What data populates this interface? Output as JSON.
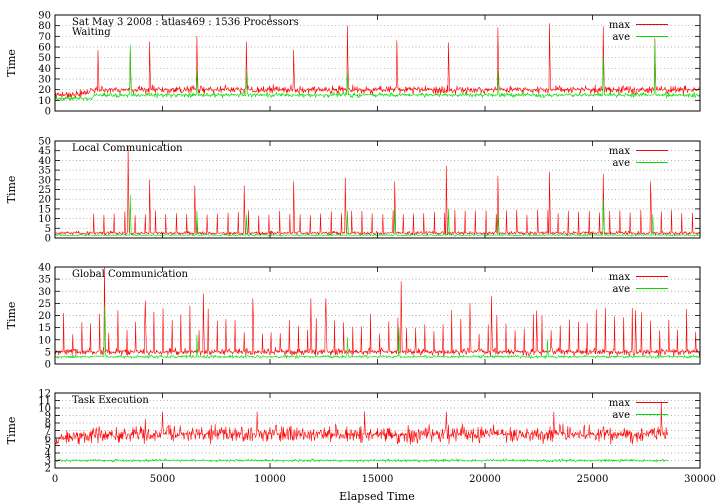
{
  "xlabel": "Elapsed Time",
  "colors": {
    "max": "#ff0000",
    "ave": "#00dd00",
    "frame": "#000000",
    "grid": "#999999"
  },
  "chart_data": [
    {
      "type": "line",
      "title": "Sat May 3 2008 : atlas469 : 1536 Processors",
      "subtitle": "Waiting",
      "ylabel": "Time",
      "xlim": [
        0,
        30000
      ],
      "ylim": [
        0,
        90
      ],
      "yticks": [
        0,
        10,
        20,
        30,
        40,
        50,
        60,
        70,
        80,
        90
      ],
      "xticks": [
        0,
        5000,
        10000,
        15000,
        20000,
        25000,
        30000
      ],
      "show_xtick_labels": false,
      "grid": true,
      "legend": "top-right",
      "sample": {
        "start": 0,
        "end": 30000,
        "step": 25
      },
      "series": [
        {
          "name": "max",
          "color": "#ff0000",
          "base_profile": [
            [
              0,
              15
            ],
            [
              1500,
              16
            ],
            [
              1700,
              20
            ],
            [
              30000,
              20
            ]
          ],
          "noise": 5,
          "noise_shape": 1.0,
          "clip": [
            10,
            90
          ],
          "spikes": [
            [
              2000,
              57
            ],
            [
              3500,
              58
            ],
            [
              4400,
              65
            ],
            [
              6600,
              70
            ],
            [
              8900,
              65
            ],
            [
              11100,
              57
            ],
            [
              13600,
              80
            ],
            [
              15900,
              66
            ],
            [
              18300,
              64
            ],
            [
              20600,
              78
            ],
            [
              23000,
              82
            ],
            [
              25500,
              79
            ],
            [
              27900,
              68
            ]
          ]
        },
        {
          "name": "ave",
          "color": "#00dd00",
          "base_profile": [
            [
              0,
              12
            ],
            [
              1700,
              12
            ],
            [
              1900,
              15
            ],
            [
              30000,
              15
            ]
          ],
          "noise": 3,
          "noise_shape": 1.0,
          "clip": [
            9,
            90
          ],
          "spikes": [
            [
              3500,
              62
            ],
            [
              6600,
              39
            ],
            [
              8900,
              37
            ],
            [
              13600,
              37
            ],
            [
              20600,
              37
            ],
            [
              25500,
              52
            ],
            [
              27900,
              65
            ]
          ]
        }
      ]
    },
    {
      "type": "line",
      "title": "Local Communication",
      "ylabel": "Time",
      "xlim": [
        0,
        30000
      ],
      "ylim": [
        0,
        50
      ],
      "yticks": [
        0,
        5,
        10,
        15,
        20,
        25,
        30,
        35,
        40,
        45,
        50
      ],
      "xticks": [
        0,
        5000,
        10000,
        15000,
        20000,
        25000,
        30000
      ],
      "show_xtick_labels": false,
      "grid": true,
      "legend": "top-right",
      "sample": {
        "start": 0,
        "end": 30000,
        "step": 25
      },
      "series": [
        {
          "name": "max",
          "color": "#ff0000",
          "base_profile": [
            [
              0,
              2.5
            ],
            [
              30000,
              2.5
            ]
          ],
          "noise": 1.2,
          "noise_shape": 1.0,
          "clip": [
            1,
            50
          ],
          "regular_spikes": {
            "start": 1800,
            "end": 29900,
            "period": 480,
            "height": 13,
            "jitter": 1.5
          },
          "spikes": [
            [
              3400,
              47
            ],
            [
              4400,
              30
            ],
            [
              6500,
              27
            ],
            [
              8800,
              27
            ],
            [
              11100,
              29
            ],
            [
              13500,
              31
            ],
            [
              15800,
              29
            ],
            [
              18200,
              37
            ],
            [
              20600,
              32
            ],
            [
              23000,
              34
            ],
            [
              25500,
              33
            ],
            [
              27700,
              29
            ]
          ]
        },
        {
          "name": "ave",
          "color": "#00dd00",
          "base_profile": [
            [
              0,
              1.5
            ],
            [
              30000,
              1.5
            ]
          ],
          "noise": 0.6,
          "noise_shape": 1.0,
          "clip": [
            0.5,
            50
          ],
          "spikes": [
            [
              3500,
              22
            ],
            [
              6600,
              14
            ],
            [
              8900,
              12
            ],
            [
              13600,
              14
            ],
            [
              15800,
              15
            ],
            [
              18300,
              15
            ],
            [
              20600,
              12
            ],
            [
              25500,
              20
            ],
            [
              27800,
              12
            ]
          ]
        }
      ]
    },
    {
      "type": "line",
      "title": "Global Communication",
      "ylabel": "Time",
      "xlim": [
        0,
        30000
      ],
      "ylim": [
        0,
        40
      ],
      "yticks": [
        0,
        5,
        10,
        15,
        20,
        25,
        30,
        35,
        40
      ],
      "xticks": [
        0,
        5000,
        10000,
        15000,
        20000,
        25000,
        30000
      ],
      "show_xtick_labels": false,
      "grid": true,
      "legend": "top-right",
      "sample": {
        "start": 0,
        "end": 30000,
        "step": 25
      },
      "series": [
        {
          "name": "max",
          "color": "#ff0000",
          "base_profile": [
            [
              0,
              5
            ],
            [
              30000,
              5
            ]
          ],
          "noise": 2,
          "noise_shape": 1.0,
          "clip": [
            2,
            40
          ],
          "regular_spikes": {
            "start": 400,
            "end": 29900,
            "period": 420,
            "height": 18,
            "jitter": 6
          },
          "spikes": [
            [
              2300,
              40
            ],
            [
              4200,
              26
            ],
            [
              6900,
              29
            ],
            [
              9200,
              27
            ],
            [
              11900,
              27
            ],
            [
              12600,
              27
            ],
            [
              16100,
              34
            ],
            [
              19300,
              25
            ],
            [
              20300,
              28
            ],
            [
              22400,
              22
            ],
            [
              27000,
              22
            ]
          ]
        },
        {
          "name": "ave",
          "color": "#00dd00",
          "base_profile": [
            [
              0,
              3
            ],
            [
              30000,
              3
            ]
          ],
          "noise": 0.8,
          "noise_shape": 1.0,
          "clip": [
            1.5,
            40
          ],
          "spikes": [
            [
              2300,
              24
            ],
            [
              6600,
              12
            ],
            [
              13600,
              11
            ],
            [
              16000,
              15
            ],
            [
              22900,
              10
            ]
          ]
        }
      ]
    },
    {
      "type": "line",
      "title": "Task Execution",
      "ylabel": "Time",
      "xlim": [
        0,
        30000
      ],
      "ylim": [
        2,
        12
      ],
      "yticks": [
        2,
        3,
        4,
        5,
        6,
        7,
        8,
        9,
        10,
        11,
        12
      ],
      "xticks": [
        0,
        5000,
        10000,
        15000,
        20000,
        25000,
        30000
      ],
      "xtick_labels": [
        "0",
        "5000",
        "10000",
        "15000",
        "20000",
        "25000",
        "30000"
      ],
      "show_xtick_labels": true,
      "grid": true,
      "legend": "top-right",
      "sample": {
        "start": 0,
        "end": 28500,
        "step": 25
      },
      "series": [
        {
          "name": "max",
          "color": "#ff0000",
          "base_profile": [
            [
              0,
              5.8
            ],
            [
              1500,
              6.5
            ],
            [
              30000,
              6.5
            ]
          ],
          "noise": 1.5,
          "noise_shape": 1.0,
          "clip": [
            3.5,
            12
          ],
          "spikes": [
            [
              4200,
              8.5
            ],
            [
              5000,
              9.5
            ],
            [
              9400,
              9.5
            ],
            [
              14400,
              9.5
            ],
            [
              18200,
              9.5
            ],
            [
              23200,
              9.5
            ],
            [
              28200,
              10.8
            ]
          ]
        },
        {
          "name": "ave",
          "color": "#00dd00",
          "base_profile": [
            [
              0,
              3
            ],
            [
              30000,
              3
            ]
          ],
          "noise": 0.25,
          "noise_shape": 1.0,
          "clip": [
            2.5,
            12
          ],
          "spikes": []
        }
      ]
    }
  ]
}
